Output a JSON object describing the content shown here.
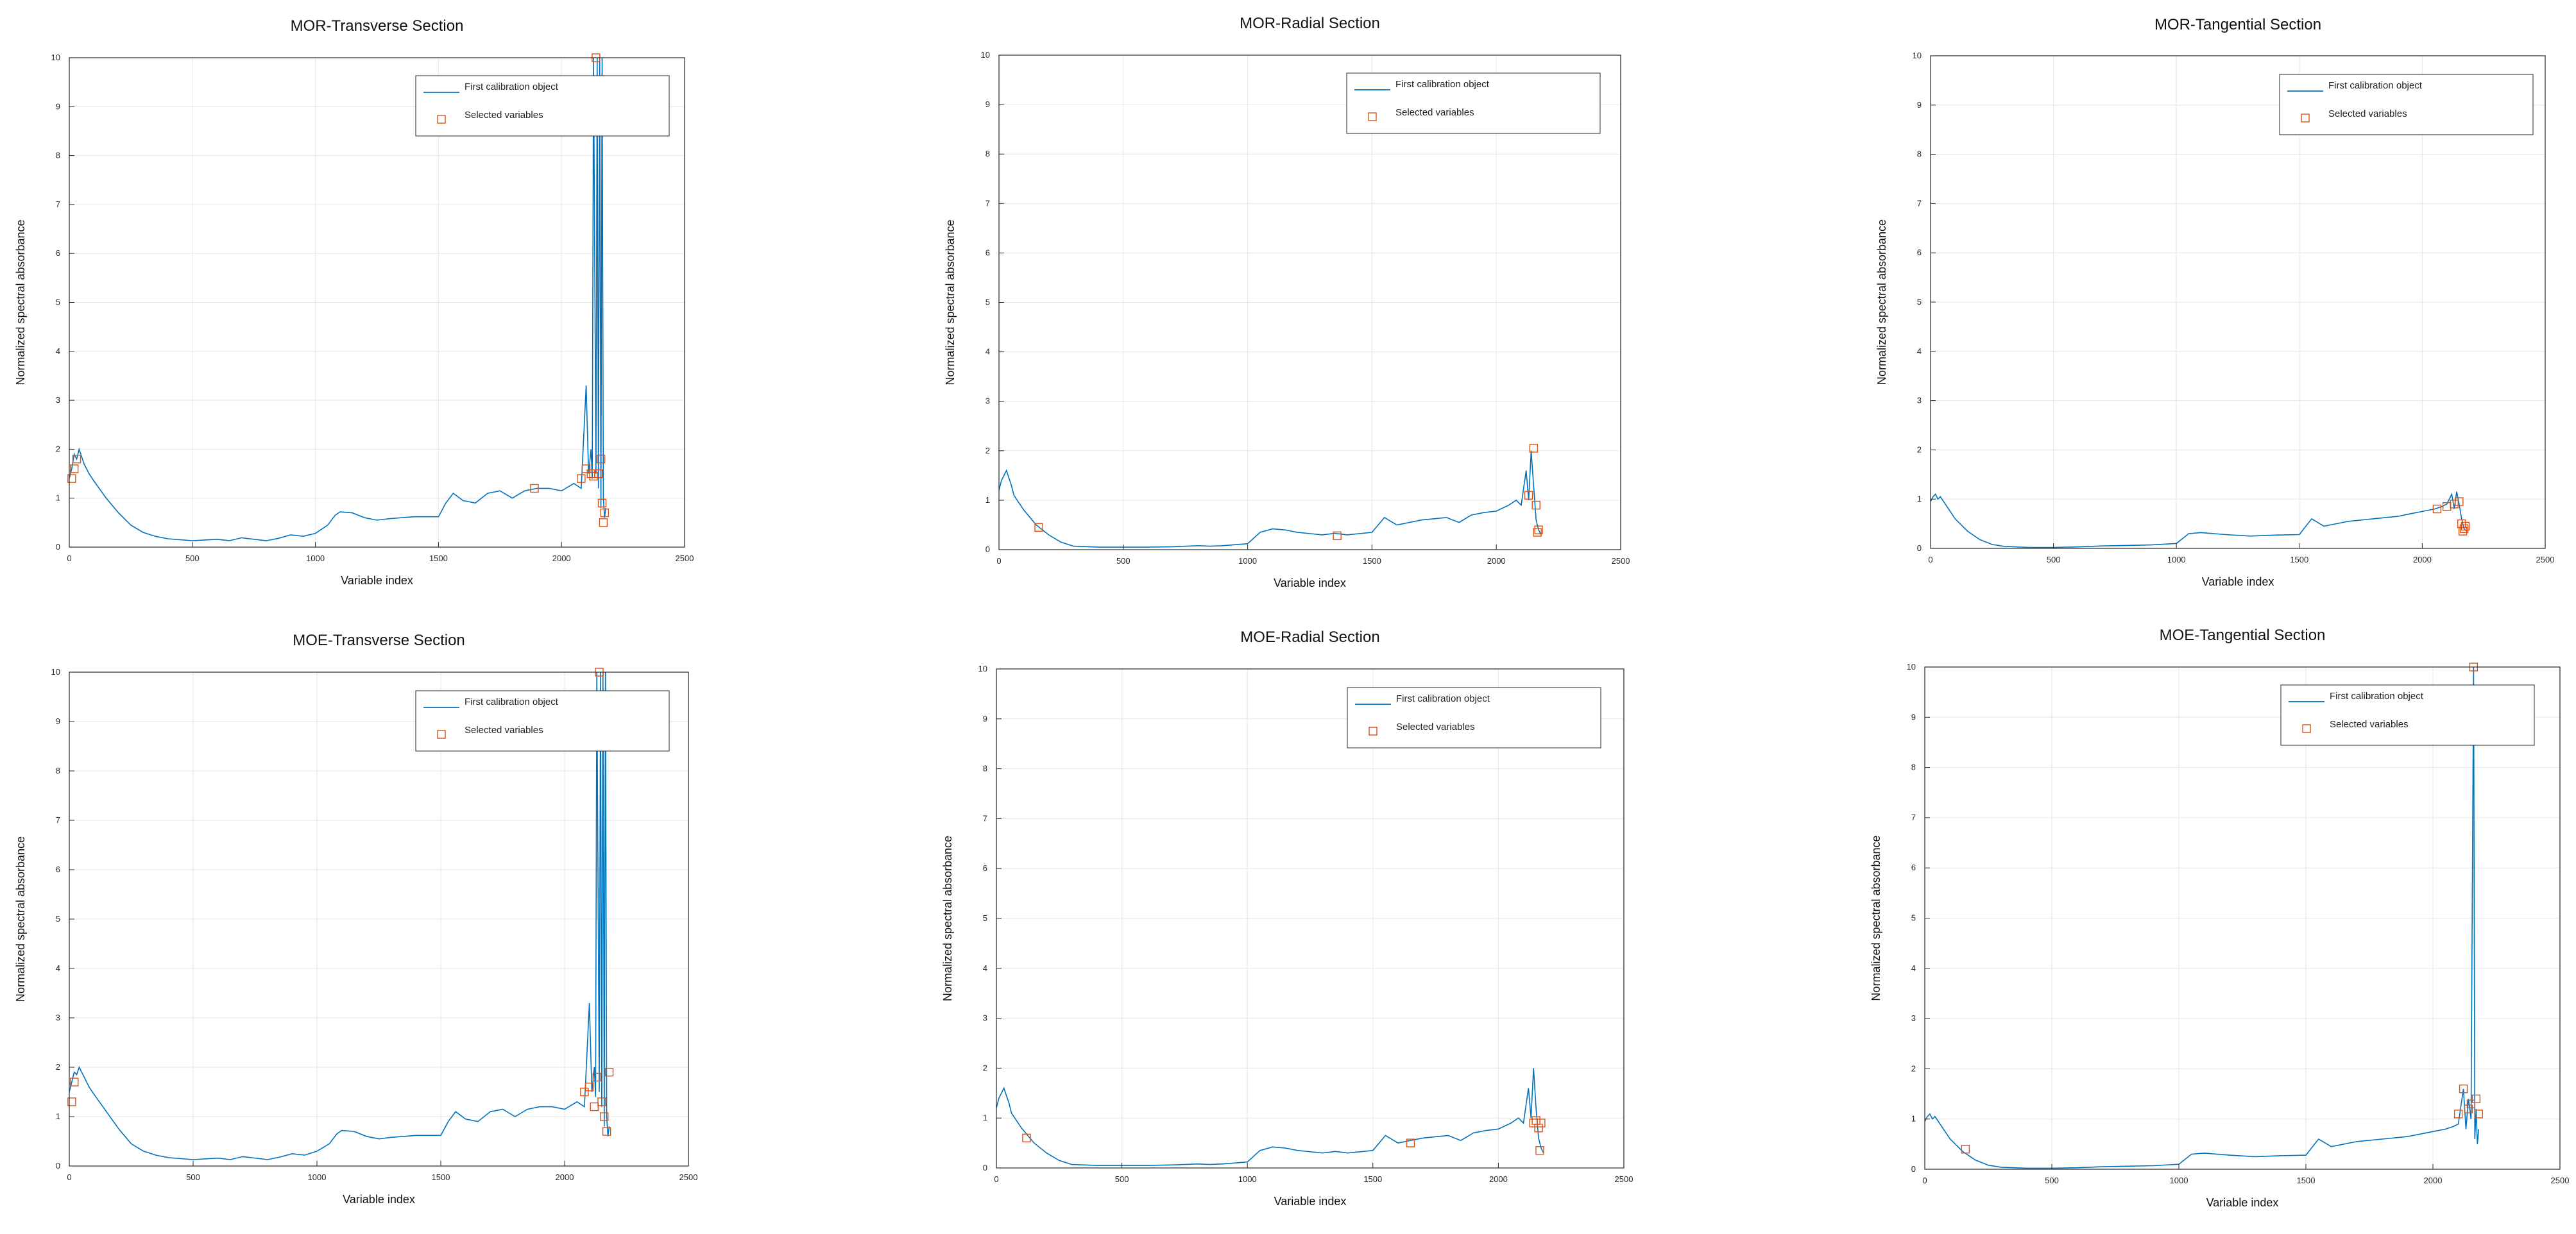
{
  "colors": {
    "series": "#0072bd",
    "marker": "#d95319",
    "grid": "#e6e6e6",
    "axes": "#262626"
  },
  "chart_data": [
    {
      "type": "line",
      "title": "MOR-Transverse Section",
      "xlabel": "Variable index",
      "ylabel": "Normalized spectral absorbance",
      "xlim": [
        0,
        2500
      ],
      "ylim": [
        0,
        10
      ],
      "xticks": [
        0,
        500,
        1000,
        1500,
        2000,
        2500
      ],
      "yticks": [
        0,
        1,
        2,
        3,
        4,
        5,
        6,
        7,
        8,
        9,
        10
      ],
      "grid": true,
      "legend_position": "top-right",
      "legend": [
        "First calibration object",
        "Selected variables"
      ],
      "series": [
        {
          "name": "First calibration object",
          "style": "line",
          "x": [
            0,
            10,
            20,
            30,
            40,
            50,
            60,
            70,
            80,
            100,
            150,
            200,
            250,
            300,
            350,
            400,
            500,
            600,
            650,
            700,
            800,
            850,
            900,
            950,
            1000,
            1050,
            1080,
            1100,
            1150,
            1200,
            1250,
            1300,
            1400,
            1500,
            1530,
            1560,
            1600,
            1650,
            1700,
            1750,
            1800,
            1850,
            1900,
            1950,
            2000,
            2050,
            2080,
            2100,
            2110,
            2120,
            2125,
            2130,
            2140,
            2145,
            2150,
            2155,
            2160,
            2165,
            2170,
            2175,
            2180
          ],
          "y": [
            1.4,
            1.6,
            1.9,
            1.8,
            2.0,
            1.85,
            1.7,
            1.6,
            1.5,
            1.35,
            1.0,
            0.7,
            0.45,
            0.3,
            0.22,
            0.17,
            0.13,
            0.16,
            0.13,
            0.19,
            0.13,
            0.18,
            0.25,
            0.22,
            0.28,
            0.45,
            0.65,
            0.72,
            0.7,
            0.6,
            0.55,
            0.58,
            0.62,
            0.62,
            0.9,
            1.1,
            0.95,
            0.9,
            1.1,
            1.15,
            1.0,
            1.15,
            1.2,
            1.2,
            1.15,
            1.3,
            1.2,
            3.3,
            1.5,
            2.0,
            1.4,
            10,
            1.5,
            10,
            1.2,
            10,
            0.8,
            10,
            1.0,
            0.6,
            0.8
          ]
        },
        {
          "name": "Selected variables",
          "style": "marker",
          "x": [
            10,
            20,
            30,
            1890,
            2080,
            2100,
            2120,
            2130,
            2140,
            2150,
            2160,
            2165,
            2170,
            2175
          ],
          "y": [
            1.4,
            1.6,
            1.8,
            1.2,
            1.4,
            1.6,
            1.5,
            1.45,
            10,
            1.5,
            1.8,
            0.9,
            0.5,
            0.7
          ]
        }
      ]
    },
    {
      "type": "line",
      "title": "MOR-Radial Section",
      "xlabel": "Variable index",
      "ylabel": "Normalized spectral absorbance",
      "xlim": [
        0,
        2500
      ],
      "ylim": [
        0,
        10
      ],
      "xticks": [
        0,
        500,
        1000,
        1500,
        2000,
        2500
      ],
      "yticks": [
        0,
        1,
        2,
        3,
        4,
        5,
        6,
        7,
        8,
        9,
        10
      ],
      "grid": true,
      "legend_position": "top-right",
      "legend": [
        "First calibration object",
        "Selected variables"
      ],
      "series": [
        {
          "name": "First calibration object",
          "style": "line",
          "x": [
            0,
            10,
            20,
            30,
            40,
            50,
            60,
            80,
            100,
            150,
            200,
            250,
            300,
            400,
            500,
            600,
            700,
            800,
            850,
            900,
            1000,
            1050,
            1100,
            1150,
            1200,
            1300,
            1350,
            1400,
            1500,
            1550,
            1600,
            1700,
            1800,
            1850,
            1900,
            1950,
            2000,
            2050,
            2080,
            2100,
            2120,
            2130,
            2140,
            2150,
            2160,
            2170,
            2180
          ],
          "y": [
            1.2,
            1.4,
            1.5,
            1.6,
            1.45,
            1.3,
            1.1,
            0.95,
            0.8,
            0.5,
            0.3,
            0.15,
            0.07,
            0.05,
            0.05,
            0.05,
            0.06,
            0.08,
            0.07,
            0.08,
            0.12,
            0.35,
            0.42,
            0.4,
            0.35,
            0.3,
            0.33,
            0.3,
            0.35,
            0.65,
            0.5,
            0.6,
            0.65,
            0.55,
            0.7,
            0.75,
            0.78,
            0.9,
            1.0,
            0.9,
            1.6,
            1.0,
            2.0,
            1.3,
            0.6,
            0.4,
            0.3
          ]
        },
        {
          "name": "Selected variables",
          "style": "marker",
          "x": [
            160,
            1360,
            2130,
            2150,
            2160,
            2165,
            2170
          ],
          "y": [
            0.45,
            0.28,
            1.1,
            2.05,
            0.9,
            0.35,
            0.4
          ]
        }
      ]
    },
    {
      "type": "line",
      "title": "MOR-Tangential Section",
      "xlabel": "Variable index",
      "ylabel": "Normalized spectral absorbance",
      "xlim": [
        0,
        2500
      ],
      "ylim": [
        0,
        10
      ],
      "xticks": [
        0,
        500,
        1000,
        1500,
        2000,
        2500
      ],
      "yticks": [
        0,
        1,
        2,
        3,
        4,
        5,
        6,
        7,
        8,
        9,
        10
      ],
      "grid": true,
      "legend_position": "top-right",
      "legend": [
        "First calibration object",
        "Selected variables"
      ],
      "series": [
        {
          "name": "First calibration object",
          "style": "line",
          "x": [
            0,
            10,
            20,
            30,
            40,
            60,
            80,
            100,
            150,
            200,
            250,
            300,
            400,
            500,
            600,
            700,
            800,
            900,
            1000,
            1050,
            1100,
            1200,
            1300,
            1400,
            1500,
            1550,
            1600,
            1650,
            1700,
            1800,
            1900,
            1950,
            2000,
            2050,
            2080,
            2100,
            2120,
            2130,
            2140,
            2150,
            2160,
            2170,
            2180
          ],
          "y": [
            0.95,
            1.05,
            1.1,
            1.0,
            1.05,
            0.9,
            0.75,
            0.6,
            0.35,
            0.18,
            0.08,
            0.04,
            0.02,
            0.02,
            0.03,
            0.05,
            0.06,
            0.07,
            0.1,
            0.3,
            0.32,
            0.28,
            0.25,
            0.27,
            0.28,
            0.6,
            0.45,
            0.5,
            0.55,
            0.6,
            0.65,
            0.7,
            0.75,
            0.8,
            0.85,
            0.9,
            1.1,
            0.8,
            1.15,
            0.9,
            0.6,
            0.4,
            0.35
          ]
        },
        {
          "name": "Selected variables",
          "style": "marker",
          "x": [
            2060,
            2100,
            2130,
            2150,
            2160,
            2165,
            2170,
            2175
          ],
          "y": [
            0.8,
            0.85,
            0.9,
            0.95,
            0.5,
            0.35,
            0.4,
            0.45
          ]
        }
      ]
    },
    {
      "type": "line",
      "title": "MOE-Transverse Section",
      "xlabel": "Variable index",
      "ylabel": "Normalized spectral absorbance",
      "xlim": [
        0,
        2500
      ],
      "ylim": [
        0,
        10
      ],
      "xticks": [
        0,
        500,
        1000,
        1500,
        2000,
        2500
      ],
      "yticks": [
        0,
        1,
        2,
        3,
        4,
        5,
        6,
        7,
        8,
        9,
        10
      ],
      "grid": true,
      "legend_position": "top-right",
      "legend": [
        "First calibration object",
        "Selected variables"
      ],
      "series": [
        {
          "name": "First calibration object",
          "style": "line",
          "x": [
            0,
            10,
            20,
            30,
            40,
            50,
            60,
            80,
            100,
            150,
            200,
            250,
            300,
            350,
            400,
            500,
            600,
            650,
            700,
            800,
            850,
            900,
            950,
            1000,
            1050,
            1080,
            1100,
            1150,
            1200,
            1250,
            1300,
            1400,
            1500,
            1530,
            1560,
            1600,
            1650,
            1700,
            1750,
            1800,
            1850,
            1900,
            1950,
            2000,
            2050,
            2080,
            2100,
            2110,
            2120,
            2125,
            2130,
            2140,
            2145,
            2150,
            2155,
            2160,
            2165,
            2170,
            2175,
            2180
          ],
          "y": [
            1.5,
            1.7,
            1.9,
            1.85,
            2.0,
            1.9,
            1.8,
            1.6,
            1.45,
            1.1,
            0.75,
            0.45,
            0.3,
            0.22,
            0.17,
            0.13,
            0.16,
            0.13,
            0.19,
            0.13,
            0.18,
            0.25,
            0.22,
            0.3,
            0.45,
            0.65,
            0.72,
            0.7,
            0.6,
            0.55,
            0.58,
            0.62,
            0.62,
            0.9,
            1.1,
            0.95,
            0.9,
            1.1,
            1.15,
            1.0,
            1.15,
            1.2,
            1.2,
            1.15,
            1.3,
            1.2,
            3.3,
            1.5,
            2.0,
            1.4,
            10,
            1.5,
            10,
            1.2,
            10,
            0.8,
            10,
            1.0,
            0.6,
            0.8
          ]
        },
        {
          "name": "Selected variables",
          "style": "marker",
          "x": [
            10,
            20,
            2080,
            2100,
            2120,
            2130,
            2140,
            2150,
            2160,
            2170,
            2180
          ],
          "y": [
            1.3,
            1.7,
            1.5,
            1.6,
            1.2,
            1.8,
            10,
            1.3,
            1.0,
            0.7,
            1.9
          ]
        }
      ]
    },
    {
      "type": "line",
      "title": "MOE-Radial Section",
      "xlabel": "Variable index",
      "ylabel": "Normalized spectral absorbance",
      "xlim": [
        0,
        2500
      ],
      "ylim": [
        0,
        10
      ],
      "xticks": [
        0,
        500,
        1000,
        1500,
        2000,
        2500
      ],
      "yticks": [
        0,
        1,
        2,
        3,
        4,
        5,
        6,
        7,
        8,
        9,
        10
      ],
      "grid": true,
      "legend_position": "top-right",
      "legend": [
        "First calibration object",
        "Selected variables"
      ],
      "series": [
        {
          "name": "First calibration object",
          "style": "line",
          "x": [
            0,
            10,
            20,
            30,
            40,
            50,
            60,
            80,
            100,
            150,
            200,
            250,
            300,
            400,
            500,
            600,
            700,
            800,
            850,
            900,
            1000,
            1050,
            1100,
            1150,
            1200,
            1300,
            1350,
            1400,
            1500,
            1550,
            1600,
            1700,
            1800,
            1850,
            1900,
            1950,
            2000,
            2050,
            2080,
            2100,
            2120,
            2130,
            2140,
            2150,
            2160,
            2170,
            2180
          ],
          "y": [
            1.2,
            1.4,
            1.5,
            1.6,
            1.45,
            1.3,
            1.1,
            0.95,
            0.8,
            0.5,
            0.3,
            0.15,
            0.07,
            0.05,
            0.05,
            0.05,
            0.06,
            0.08,
            0.07,
            0.08,
            0.12,
            0.35,
            0.42,
            0.4,
            0.35,
            0.3,
            0.33,
            0.3,
            0.35,
            0.65,
            0.5,
            0.6,
            0.65,
            0.55,
            0.7,
            0.75,
            0.78,
            0.9,
            1.0,
            0.9,
            1.6,
            1.0,
            2.0,
            1.2,
            0.6,
            0.4,
            0.3
          ]
        },
        {
          "name": "Selected variables",
          "style": "marker",
          "x": [
            120,
            1650,
            2140,
            2150,
            2160,
            2165,
            2170
          ],
          "y": [
            0.6,
            0.5,
            0.9,
            0.95,
            0.8,
            0.35,
            0.9
          ]
        }
      ]
    },
    {
      "type": "line",
      "title": "MOE-Tangential Section",
      "xlabel": "Variable index",
      "ylabel": "Normalized spectral absorbance",
      "xlim": [
        0,
        2500
      ],
      "ylim": [
        0,
        10
      ],
      "xticks": [
        0,
        500,
        1000,
        1500,
        2000,
        2500
      ],
      "yticks": [
        0,
        1,
        2,
        3,
        4,
        5,
        6,
        7,
        8,
        9,
        10
      ],
      "grid": true,
      "legend_position": "top-right",
      "legend": [
        "First calibration object",
        "Selected variables"
      ],
      "series": [
        {
          "name": "First calibration object",
          "style": "line",
          "x": [
            0,
            10,
            20,
            30,
            40,
            60,
            80,
            100,
            150,
            200,
            250,
            300,
            400,
            500,
            600,
            700,
            800,
            900,
            1000,
            1050,
            1100,
            1200,
            1300,
            1400,
            1500,
            1550,
            1600,
            1650,
            1700,
            1800,
            1900,
            1950,
            2000,
            2050,
            2080,
            2100,
            2120,
            2130,
            2140,
            2150,
            2160,
            2165,
            2170,
            2175,
            2180
          ],
          "y": [
            0.95,
            1.05,
            1.1,
            1.0,
            1.05,
            0.9,
            0.75,
            0.6,
            0.35,
            0.18,
            0.08,
            0.04,
            0.02,
            0.02,
            0.03,
            0.05,
            0.06,
            0.07,
            0.1,
            0.3,
            0.32,
            0.28,
            0.25,
            0.27,
            0.28,
            0.6,
            0.45,
            0.5,
            0.55,
            0.6,
            0.65,
            0.7,
            0.75,
            0.8,
            0.85,
            0.9,
            1.6,
            0.8,
            1.4,
            1.0,
            10,
            0.6,
            1.2,
            0.5,
            0.8
          ]
        },
        {
          "name": "Selected variables",
          "style": "marker",
          "x": [
            160,
            2100,
            2120,
            2140,
            2150,
            2160,
            2170,
            2180
          ],
          "y": [
            0.4,
            1.1,
            1.6,
            1.2,
            1.3,
            10,
            1.4,
            1.1
          ]
        }
      ]
    }
  ]
}
